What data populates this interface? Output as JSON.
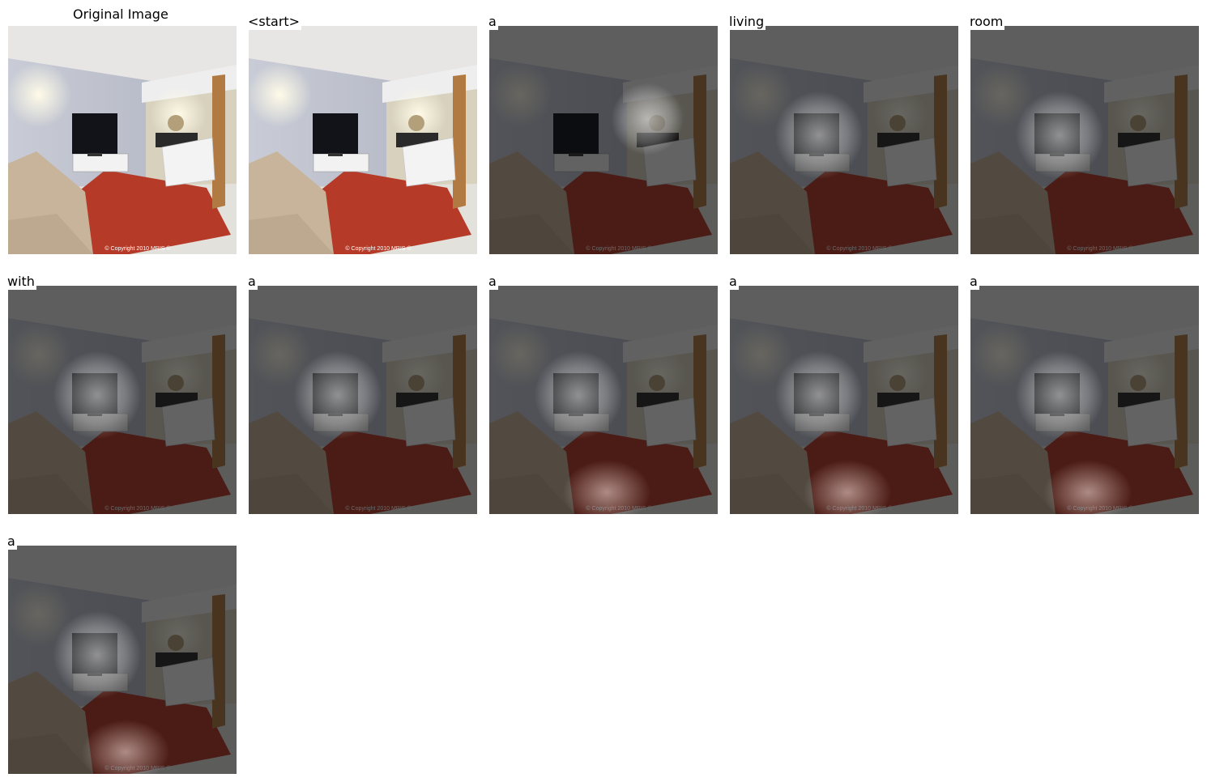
{
  "figure": {
    "title": "Original Image",
    "watermark": "© Copyright 2010 MRIS ©",
    "panels": [
      {
        "word": "<start>",
        "overlay": false
      },
      {
        "word": "a",
        "overlay": true,
        "spot": "right"
      },
      {
        "word": "living",
        "overlay": true,
        "spot": "tv"
      },
      {
        "word": "room",
        "overlay": true,
        "spot": "tv"
      },
      {
        "word": "with",
        "overlay": true,
        "spot": "tv"
      },
      {
        "word": "a",
        "overlay": true,
        "spot": "tv"
      },
      {
        "word": "a",
        "overlay": true,
        "spot": "tv"
      },
      {
        "word": "a",
        "overlay": true,
        "spot": "tv"
      },
      {
        "word": "a",
        "overlay": true,
        "spot": "tv"
      },
      {
        "word": "a",
        "overlay": true,
        "spot": "tv"
      }
    ]
  }
}
